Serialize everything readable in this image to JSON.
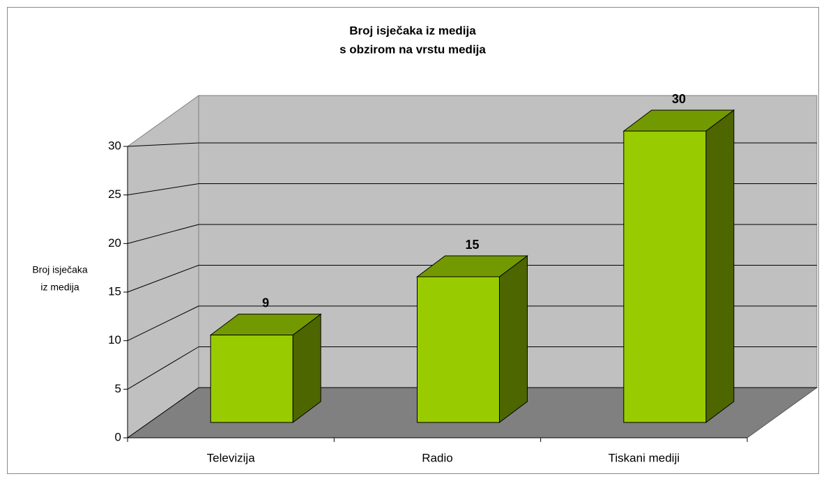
{
  "chart_data": {
    "type": "bar3d",
    "title": [
      "Broj isječaka iz medija",
      "s obzirom na vrstu medija"
    ],
    "y_label": [
      "Broj isječaka",
      "iz medija"
    ],
    "categories": [
      "Televizija",
      "Radio",
      "Tiskani mediji"
    ],
    "values": [
      9,
      15,
      30
    ],
    "color": "#99cc00",
    "ylim": [
      0,
      30
    ],
    "yticks": [
      0,
      5,
      10,
      15,
      20,
      25,
      30
    ],
    "grid": true
  }
}
